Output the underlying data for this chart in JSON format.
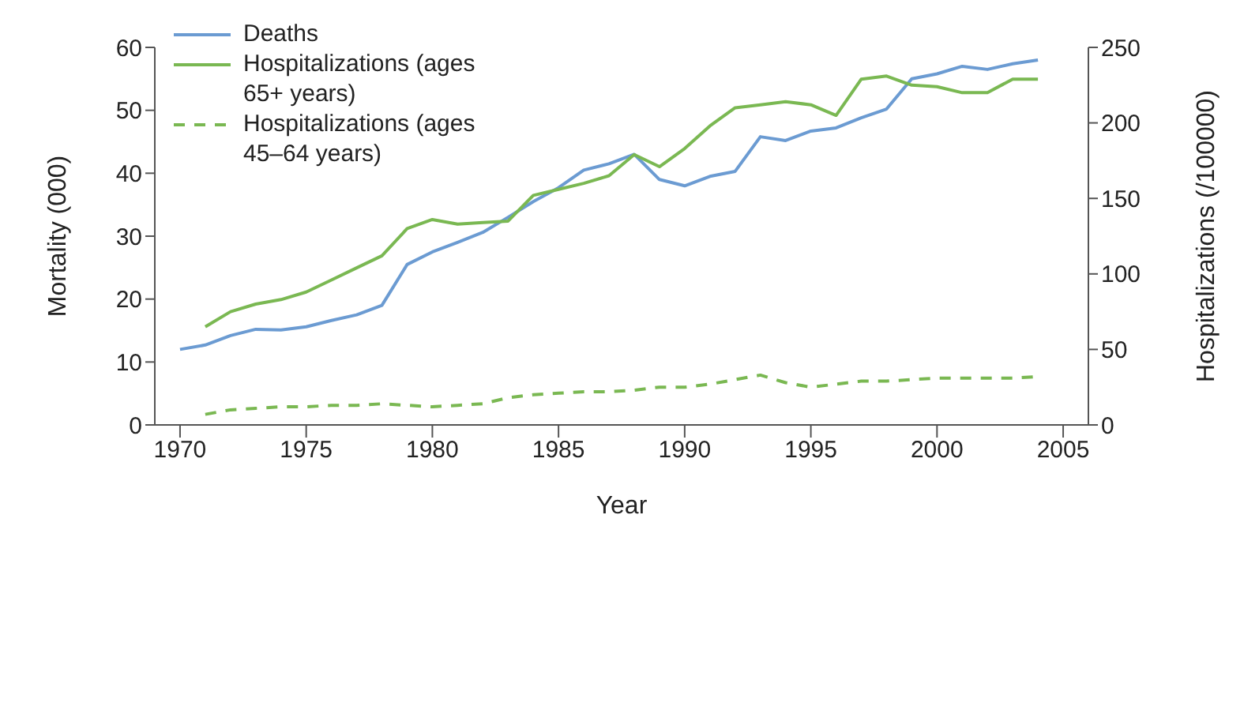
{
  "chart_data": {
    "type": "line",
    "xlabel": "Year",
    "ylabel": "Mortality (000)",
    "y2label": "Hospitalizations (/100000)",
    "x": [
      1970,
      1971,
      1972,
      1973,
      1974,
      1975,
      1976,
      1977,
      1978,
      1979,
      1980,
      1981,
      1982,
      1983,
      1984,
      1985,
      1986,
      1987,
      1988,
      1989,
      1990,
      1991,
      1992,
      1993,
      1994,
      1995,
      1996,
      1997,
      1998,
      1999,
      2000,
      2001,
      2002,
      2003,
      2004
    ],
    "series": [
      {
        "name": "Deaths",
        "color": "#6b9bd2",
        "values": [
          12,
          12.7,
          14.2,
          15.2,
          15.1,
          15.6,
          16.6,
          17.5,
          19,
          25.5,
          27.5,
          29,
          30.6,
          33,
          35.5,
          37.7,
          40.5,
          41.5,
          43,
          39,
          38,
          39.5,
          40.3,
          45.8,
          45.2,
          46.7,
          47.2,
          48.8,
          50.2,
          55,
          55.8,
          57,
          56.5,
          57.4,
          58
        ]
      },
      {
        "name": "Hospitalizations (ages 65+ years)",
        "color": "#7ab852",
        "axis": "y2",
        "values": [
          null,
          65,
          75,
          80,
          83,
          88,
          96,
          104,
          112,
          130,
          136,
          133,
          134,
          135,
          152,
          156,
          160,
          165,
          179,
          171,
          183,
          198,
          210,
          212,
          214,
          212,
          205,
          229,
          231,
          225,
          224,
          220,
          220,
          229,
          229
        ]
      },
      {
        "name": "Hospitalizations (ages 45–64 years)",
        "color": "#7ab852",
        "axis": "y2",
        "line_style": "dashed",
        "values": [
          null,
          7,
          10,
          11,
          12,
          12,
          13,
          13,
          14,
          13,
          12,
          13,
          14,
          18,
          20,
          21,
          22,
          22,
          23,
          25,
          25,
          27,
          30,
          33,
          28,
          25,
          27,
          29,
          29,
          30,
          31,
          31,
          31,
          31,
          32
        ]
      }
    ],
    "xlim": [
      1969,
      2006
    ],
    "xticks": [
      1970,
      1975,
      1980,
      1985,
      1990,
      1995,
      2000,
      2005
    ],
    "ylim": [
      0,
      60
    ],
    "yticks": [
      0,
      10,
      20,
      30,
      40,
      50,
      60
    ],
    "y2lim": [
      0,
      250
    ],
    "y2ticks": [
      0,
      50,
      100,
      150,
      200,
      250
    ],
    "grid": false,
    "legend": "top left",
    "marker": "none",
    "line_style": "solid"
  }
}
